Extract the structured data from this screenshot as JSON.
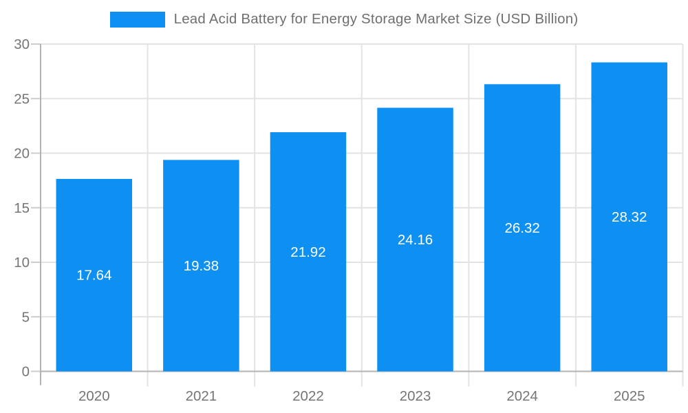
{
  "chart_data": {
    "type": "bar",
    "title": "Lead Acid Battery for Energy Storage Market Size (USD Billion)",
    "categories": [
      "2020",
      "2021",
      "2022",
      "2023",
      "2024",
      "2025"
    ],
    "values": [
      17.64,
      19.38,
      21.92,
      24.16,
      26.32,
      28.32
    ],
    "value_labels": [
      "17.64",
      "19.38",
      "21.92",
      "24.16",
      "26.32",
      "28.32"
    ],
    "series_name": "Lead Acid Battery for Energy Storage Market Size (USD Billion)",
    "xlabel": "",
    "ylabel": "",
    "ylim": [
      0,
      30
    ],
    "yticks": [
      0,
      5,
      10,
      15,
      20,
      25,
      30
    ],
    "ytick_labels": [
      "0",
      "5",
      "10",
      "15",
      "20",
      "25",
      "30"
    ],
    "grid": true,
    "legend_position": "top-center",
    "colors": {
      "bar": "#0d90f2",
      "bar_label": "#ffffff",
      "title_text": "#6f6f6f",
      "axis_text": "#757575",
      "axis_line": "#b3b3b3",
      "grid_line": "#e3e3e3",
      "tick_line": "#cccccc",
      "background": "#ffffff"
    }
  }
}
